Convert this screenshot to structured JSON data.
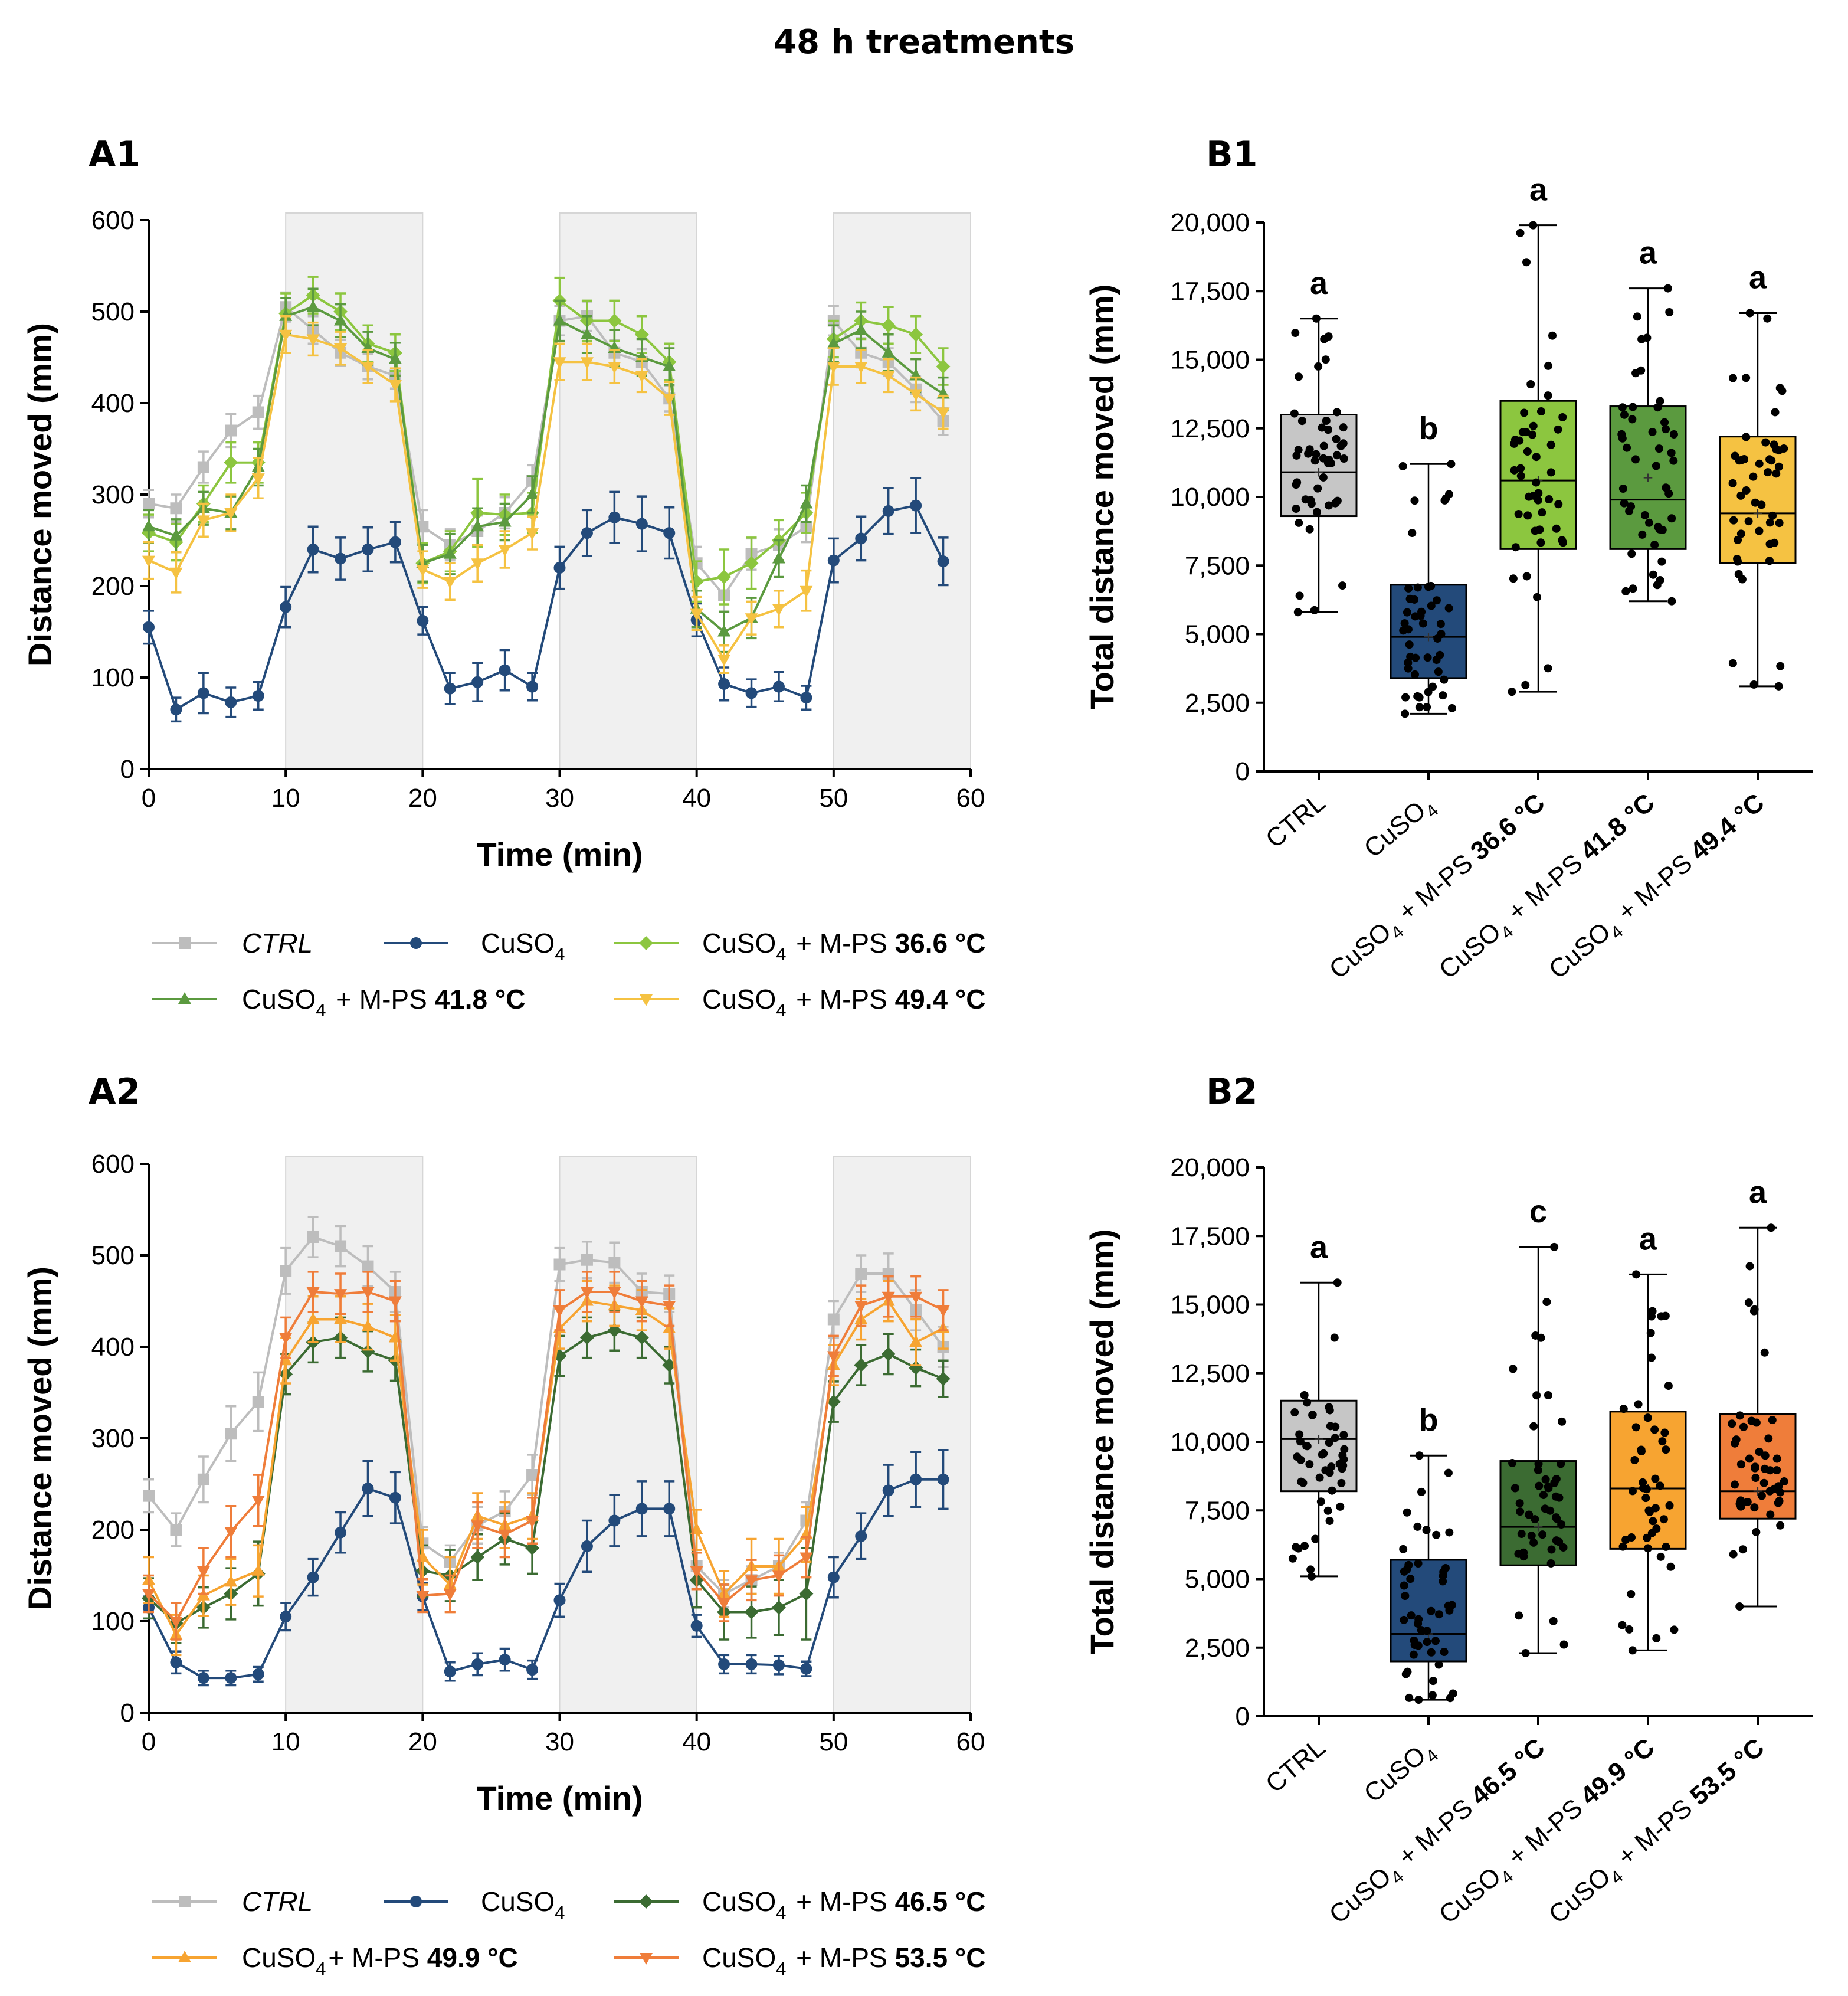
{
  "title": "48 h treatments",
  "chart_data": [
    {
      "id": "A1",
      "type": "line",
      "panel_label": "A1",
      "xlabel": "Time (min)",
      "ylabel": "Distance moved (mm)",
      "xlim": [
        0,
        60
      ],
      "ylim": [
        0,
        600
      ],
      "xticks": [
        0,
        10,
        20,
        30,
        40,
        50,
        60
      ],
      "yticks": [
        0,
        100,
        200,
        300,
        400,
        500,
        600
      ],
      "shaded_intervals": [
        [
          10,
          20
        ],
        [
          30,
          40
        ],
        [
          50,
          60
        ]
      ],
      "x": [
        0,
        2,
        4,
        6,
        8,
        10,
        12,
        14,
        16,
        18,
        20,
        22,
        24,
        26,
        28,
        30,
        32,
        34,
        36,
        38,
        40,
        42,
        44,
        46,
        48,
        50,
        52,
        54,
        56,
        58
      ],
      "series": [
        {
          "name": "CTRL",
          "italic": true,
          "color": "#bdbdbd",
          "marker": "square",
          "values": [
            290,
            285,
            330,
            370,
            390,
            505,
            480,
            455,
            440,
            430,
            265,
            245,
            260,
            280,
            315,
            490,
            495,
            455,
            445,
            405,
            225,
            190,
            235,
            245,
            265,
            490,
            455,
            445,
            415,
            380
          ],
          "errors": [
            15,
            15,
            17,
            18,
            18,
            16,
            15,
            14,
            14,
            14,
            18,
            17,
            17,
            17,
            17,
            16,
            16,
            14,
            14,
            14,
            18,
            18,
            17,
            17,
            17,
            16,
            16,
            15,
            14,
            15
          ]
        },
        {
          "name": "CuSO",
          "sub": "4",
          "bold": "",
          "color": "#234a7a",
          "marker": "circle",
          "values": [
            155,
            65,
            83,
            73,
            80,
            177,
            240,
            230,
            240,
            248,
            162,
            88,
            95,
            108,
            90,
            220,
            258,
            275,
            268,
            258,
            163,
            93,
            83,
            90,
            78,
            228,
            252,
            282,
            288,
            227
          ],
          "errors": [
            18,
            13,
            22,
            16,
            15,
            22,
            25,
            23,
            24,
            22,
            15,
            17,
            21,
            22,
            15,
            23,
            25,
            28,
            30,
            28,
            18,
            18,
            15,
            16,
            13,
            24,
            24,
            25,
            30,
            26
          ]
        },
        {
          "name": "CuSO",
          "sub": "4",
          "suffix": " + M-PS ",
          "bold": "36.6 °C",
          "color": "#8cc63f",
          "marker": "diamond",
          "values": [
            258,
            248,
            290,
            335,
            335,
            498,
            518,
            500,
            465,
            455,
            225,
            238,
            280,
            278,
            280,
            512,
            490,
            490,
            475,
            445,
            205,
            210,
            225,
            250,
            280,
            470,
            490,
            485,
            475,
            440
          ],
          "errors": [
            20,
            20,
            20,
            22,
            22,
            22,
            20,
            20,
            20,
            20,
            22,
            22,
            37,
            22,
            22,
            25,
            22,
            22,
            20,
            20,
            22,
            30,
            28,
            22,
            22,
            20,
            20,
            20,
            20,
            20
          ]
        },
        {
          "name": "CuSO",
          "sub": "4",
          "suffix": " + M-PS ",
          "bold": "41.8 °C",
          "color": "#5b9a3f",
          "marker": "triangle-up",
          "values": [
            265,
            255,
            285,
            280,
            330,
            495,
            505,
            490,
            460,
            448,
            225,
            235,
            265,
            270,
            300,
            490,
            475,
            460,
            450,
            440,
            175,
            150,
            165,
            230,
            290,
            465,
            480,
            455,
            430,
            410
          ],
          "errors": [
            18,
            18,
            18,
            18,
            20,
            20,
            20,
            18,
            18,
            18,
            20,
            22,
            20,
            20,
            20,
            22,
            20,
            20,
            20,
            20,
            20,
            22,
            22,
            20,
            20,
            20,
            20,
            20,
            18,
            18
          ]
        },
        {
          "name": "CuSO",
          "sub": "4",
          "suffix": " + M-PS ",
          "bold": "49.4 °C",
          "color": "#f5c242",
          "marker": "triangle-down",
          "values": [
            228,
            215,
            272,
            280,
            318,
            475,
            470,
            460,
            440,
            420,
            218,
            205,
            225,
            240,
            258,
            445,
            445,
            440,
            430,
            405,
            170,
            120,
            165,
            175,
            195,
            440,
            440,
            430,
            410,
            390
          ],
          "errors": [
            20,
            22,
            18,
            20,
            22,
            20,
            18,
            18,
            18,
            18,
            20,
            20,
            20,
            20,
            18,
            20,
            20,
            18,
            18,
            18,
            18,
            15,
            18,
            20,
            22,
            20,
            18,
            18,
            18,
            18
          ]
        }
      ]
    },
    {
      "id": "A2",
      "type": "line",
      "panel_label": "A2",
      "xlabel": "Time (min)",
      "ylabel": "Distance moved (mm)",
      "xlim": [
        0,
        60
      ],
      "ylim": [
        0,
        600
      ],
      "xticks": [
        0,
        10,
        20,
        30,
        40,
        50,
        60
      ],
      "yticks": [
        0,
        100,
        200,
        300,
        400,
        500,
        600
      ],
      "shaded_intervals": [
        [
          10,
          20
        ],
        [
          30,
          40
        ],
        [
          50,
          60
        ]
      ],
      "x": [
        0,
        2,
        4,
        6,
        8,
        10,
        12,
        14,
        16,
        18,
        20,
        22,
        24,
        26,
        28,
        30,
        32,
        34,
        36,
        38,
        40,
        42,
        44,
        46,
        48,
        50,
        52,
        54,
        56,
        58
      ],
      "series": [
        {
          "name": "CTRL",
          "italic": true,
          "color": "#bdbdbd",
          "marker": "square",
          "values": [
            237,
            200,
            255,
            305,
            340,
            483,
            520,
            510,
            488,
            460,
            185,
            165,
            205,
            220,
            260,
            490,
            495,
            492,
            460,
            458,
            160,
            130,
            145,
            160,
            210,
            430,
            480,
            480,
            440,
            400
          ],
          "errors": [
            18,
            18,
            25,
            30,
            32,
            25,
            22,
            22,
            22,
            22,
            18,
            18,
            20,
            22,
            22,
            18,
            20,
            22,
            20,
            20,
            18,
            15,
            15,
            15,
            20,
            20,
            20,
            22,
            22,
            22
          ]
        },
        {
          "name": "CuSO",
          "sub": "4",
          "bold": "",
          "color": "#234a7a",
          "marker": "circle",
          "values": [
            115,
            55,
            38,
            38,
            42,
            105,
            148,
            197,
            245,
            235,
            127,
            45,
            53,
            58,
            47,
            123,
            182,
            210,
            223,
            223,
            95,
            53,
            53,
            52,
            48,
            148,
            193,
            243,
            255,
            255
          ],
          "errors": [
            12,
            12,
            8,
            8,
            8,
            15,
            20,
            22,
            30,
            28,
            15,
            10,
            12,
            12,
            10,
            18,
            28,
            28,
            30,
            30,
            12,
            10,
            10,
            10,
            8,
            22,
            25,
            28,
            30,
            32
          ]
        },
        {
          "name": "CuSO",
          "sub": "4",
          "suffix": " + M-PS ",
          "bold": "46.5 °C",
          "color": "#3b6b32",
          "marker": "diamond",
          "values": [
            125,
            98,
            115,
            130,
            152,
            370,
            405,
            410,
            395,
            385,
            155,
            150,
            170,
            190,
            180,
            390,
            410,
            418,
            410,
            380,
            145,
            110,
            110,
            115,
            130,
            340,
            380,
            392,
            377,
            365
          ],
          "errors": [
            22,
            22,
            22,
            28,
            35,
            22,
            22,
            22,
            22,
            22,
            28,
            28,
            25,
            28,
            28,
            22,
            22,
            22,
            22,
            20,
            30,
            30,
            28,
            30,
            50,
            22,
            22,
            22,
            20,
            20
          ]
        },
        {
          "name": "CuSO",
          "sub": "4",
          "suffix": "+ M-PS ",
          "bold": "49.9 °C",
          "color": "#f7a431",
          "marker": "triangle-up",
          "values": [
            145,
            85,
            128,
            143,
            155,
            385,
            430,
            430,
            422,
            410,
            170,
            140,
            215,
            205,
            215,
            420,
            450,
            445,
            440,
            420,
            200,
            130,
            160,
            160,
            195,
            380,
            430,
            450,
            405,
            420
          ],
          "errors": [
            25,
            22,
            22,
            25,
            28,
            25,
            25,
            25,
            25,
            25,
            30,
            30,
            25,
            25,
            25,
            22,
            22,
            22,
            22,
            22,
            22,
            25,
            30,
            30,
            30,
            22,
            22,
            22,
            25,
            22
          ]
        },
        {
          "name": "CuSO",
          "sub": "4",
          "suffix": " + M-PS ",
          "bold": "53.5 °C",
          "color": "#ef7d3a",
          "marker": "triangle-down",
          "values": [
            130,
            100,
            155,
            198,
            232,
            410,
            460,
            458,
            460,
            450,
            128,
            130,
            205,
            195,
            210,
            440,
            460,
            460,
            450,
            445,
            155,
            120,
            145,
            150,
            170,
            390,
            445,
            455,
            455,
            440
          ],
          "errors": [
            20,
            20,
            25,
            28,
            28,
            22,
            22,
            22,
            22,
            22,
            18,
            20,
            25,
            25,
            25,
            22,
            22,
            22,
            22,
            22,
            20,
            20,
            22,
            22,
            22,
            22,
            22,
            22,
            22,
            22
          ]
        }
      ]
    },
    {
      "id": "B1",
      "type": "box",
      "panel_label": "B1",
      "ylabel": "Total distance moved (mm)",
      "ylim": [
        0,
        20000
      ],
      "yticks": [
        0,
        2500,
        5000,
        7500,
        10000,
        12500,
        15000,
        17500,
        20000
      ],
      "ytick_labels": [
        "0",
        "2,500",
        "5,000",
        "7,500",
        "10,000",
        "12,500",
        "15,000",
        "17,500",
        "20,000"
      ],
      "boxes": [
        {
          "label": "CTRL",
          "sub": "",
          "suffix": "",
          "bold": "",
          "color": "#c6c6c6",
          "min": 5800,
          "q1": 9300,
          "median": 10900,
          "mean": 10900,
          "q3": 13000,
          "max": 16500,
          "letter": "a"
        },
        {
          "label": "CuSO",
          "sub": "4",
          "suffix": "",
          "bold": "",
          "color": "#234a7a",
          "min": 2100,
          "q1": 3400,
          "median": 4900,
          "mean": 4900,
          "q3": 6800,
          "max": 11200,
          "letter": "b"
        },
        {
          "label": "CuSO",
          "sub": "4",
          "suffix": " + M-PS ",
          "bold": "36.6 °C",
          "color": "#8cc63f",
          "min": 2900,
          "q1": 8100,
          "median": 10600,
          "mean": 10600,
          "q3": 13500,
          "max": 19900,
          "letter": "a"
        },
        {
          "label": "CuSO",
          "sub": "4",
          "suffix": " + M-PS ",
          "bold": "41.8 °C",
          "color": "#5b9a3f",
          "min": 6200,
          "q1": 8100,
          "median": 9900,
          "mean": 10700,
          "q3": 13300,
          "max": 17600,
          "letter": "a"
        },
        {
          "label": "CuSO",
          "sub": "4",
          "suffix": " + M-PS ",
          "bold": "49.4 °C",
          "color": "#f5c242",
          "min": 3100,
          "q1": 7600,
          "median": 9400,
          "mean": 9400,
          "q3": 12200,
          "max": 16700,
          "letter": "a"
        }
      ]
    },
    {
      "id": "B2",
      "type": "box",
      "panel_label": "B2",
      "ylabel": "Total distance moved (mm)",
      "ylim": [
        0,
        20000
      ],
      "yticks": [
        0,
        2500,
        5000,
        7500,
        10000,
        12500,
        15000,
        17500,
        20000
      ],
      "ytick_labels": [
        "0",
        "2,500",
        "5,000",
        "7,500",
        "10,000",
        "12,500",
        "15,000",
        "17,500",
        "20,000"
      ],
      "boxes": [
        {
          "label": "CTRL",
          "sub": "",
          "suffix": "",
          "bold": "",
          "color": "#c6c6c6",
          "min": 5100,
          "q1": 8200,
          "median": 10100,
          "mean": 10100,
          "q3": 11500,
          "max": 15800,
          "letter": "a"
        },
        {
          "label": "CuSO",
          "sub": "4",
          "suffix": "",
          "bold": "",
          "color": "#234a7a",
          "min": 600,
          "q1": 2000,
          "median": 3000,
          "mean": 3000,
          "q3": 5700,
          "max": 9500,
          "letter": "b"
        },
        {
          "label": "CuSO",
          "sub": "4",
          "suffix": " + M-PS ",
          "bold": "46.5 °C",
          "color": "#3b6b32",
          "min": 2300,
          "q1": 5500,
          "median": 6900,
          "mean": 6900,
          "q3": 9300,
          "max": 17100,
          "letter": "c"
        },
        {
          "label": "CuSO",
          "sub": "4",
          "suffix": " + M-PS ",
          "bold": "49.9 °C",
          "color": "#f7a431",
          "min": 2400,
          "q1": 6100,
          "median": 8300,
          "mean": 8300,
          "q3": 11100,
          "max": 16100,
          "letter": "a"
        },
        {
          "label": "CuSO",
          "sub": "4",
          "suffix": " + M-PS ",
          "bold": "53.5 °C",
          "color": "#ef7d3a",
          "min": 4000,
          "q1": 7200,
          "median": 8200,
          "mean": 8200,
          "q3": 11000,
          "max": 17800,
          "letter": "a"
        }
      ]
    }
  ]
}
